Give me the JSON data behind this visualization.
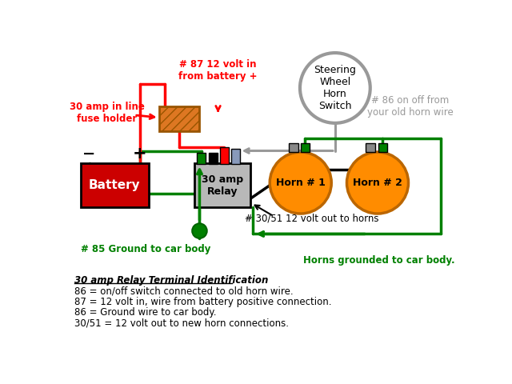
{
  "bg_color": "#ffffff",
  "green": "#008000",
  "red": "#ff0000",
  "orange": "#ff8c00",
  "gray": "#999999",
  "black": "#000000",
  "battery_color": "#cc0000",
  "relay_color": "#b8b8b8",
  "legend_title": "30 amp Relay Terminal Identification",
  "legend_lines": [
    "86 = on/off switch connected to old horn wire.",
    "87 = 12 volt in, wire from battery positive connection.",
    "86 = Ground wire to car body.",
    "30/51 = 12 volt out to new horn connections."
  ]
}
